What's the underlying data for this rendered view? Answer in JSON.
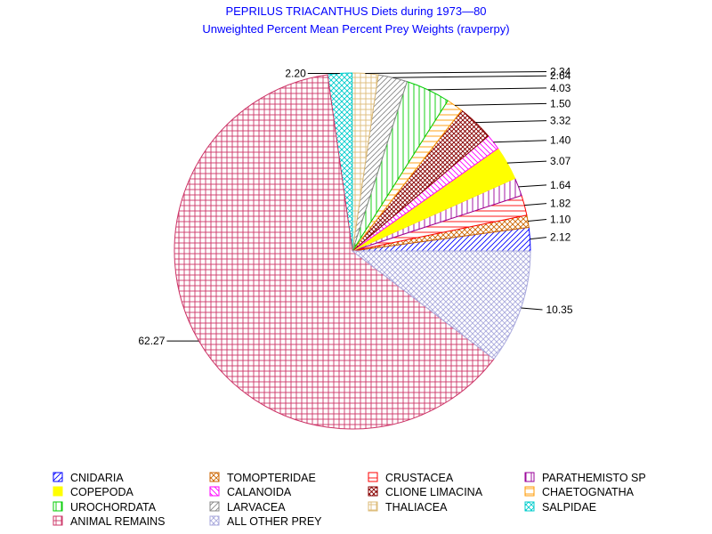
{
  "chart_data": {
    "type": "pie",
    "title": "PEPRILUS TRIACANTHUS Diets during 1973—80",
    "subtitle": "Unweighted Percent Mean Percent Prey  Weights (ravperpy)",
    "slices": [
      {
        "name": "CNIDARIA",
        "value": 2.12,
        "label": "2.12",
        "color": "#0000ff",
        "pattern": "diag-up"
      },
      {
        "name": "TOMOPTERIDAE",
        "value": 1.1,
        "label": "1.10",
        "color": "#cc6600",
        "pattern": "cross-diag"
      },
      {
        "name": "CRUSTACEA",
        "value": 1.82,
        "label": "1.82",
        "color": "#ff0000",
        "pattern": "horiz"
      },
      {
        "name": "PARATHEMISTO SP",
        "value": 1.64,
        "label": "1.64",
        "color": "#990099",
        "pattern": "vert"
      },
      {
        "name": "COPEPODA",
        "value": 3.07,
        "label": "3.07",
        "color": "#ffff00",
        "pattern": "solid"
      },
      {
        "name": "CALANOIDA",
        "value": 1.4,
        "label": "1.40",
        "color": "#ff00ff",
        "pattern": "diag-down"
      },
      {
        "name": "CLIONE LIMACINA",
        "value": 3.32,
        "label": "3.32",
        "color": "#880000",
        "pattern": "cross-diag-dense"
      },
      {
        "name": "CHAETOGNATHA",
        "value": 1.5,
        "label": "1.50",
        "color": "#ff9900",
        "pattern": "horiz"
      },
      {
        "name": "UROCHORDATA",
        "value": 4.03,
        "label": "4.03",
        "color": "#00cc00",
        "pattern": "vert"
      },
      {
        "name": "LARVACEA",
        "value": 2.64,
        "label": "2.64",
        "color": "#888888",
        "pattern": "diag-up"
      },
      {
        "name": "THALIACEA",
        "value": 2.34,
        "label": "2.34",
        "color": "#ddbb77",
        "pattern": "grid"
      },
      {
        "name": "SALPIDAE",
        "value": 2.2,
        "label": "2.20",
        "color": "#00cccc",
        "pattern": "cross-diag"
      },
      {
        "name": "ANIMAL REMAINS",
        "value": 62.27,
        "label": "62.27",
        "color": "#cc3366",
        "pattern": "grid"
      },
      {
        "name": "ALL OTHER PREY",
        "value": 10.35,
        "label": "10.35",
        "color": "#aaaadd",
        "pattern": "cross-diag"
      }
    ],
    "legend": [
      [
        "CNIDARIA",
        "TOMOPTERIDAE",
        "CRUSTACEA",
        "PARATHEMISTO SP"
      ],
      [
        "COPEPODA",
        "CALANOIDA",
        "CLIONE LIMACINA",
        "CHAETOGNATHA"
      ],
      [
        "UROCHORDATA",
        "LARVACEA",
        "THALIACEA",
        "SALPIDAE"
      ],
      [
        "ANIMAL REMAINS",
        "ALL OTHER PREY"
      ]
    ],
    "legend_position": "bottom"
  }
}
